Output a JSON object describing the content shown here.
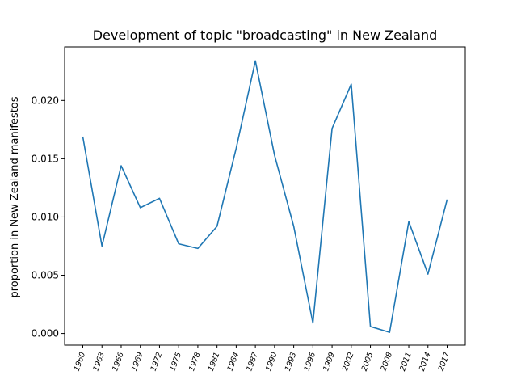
{
  "chart_data": {
    "type": "line",
    "title": "Development of topic \"broadcasting\" in New Zealand",
    "xlabel": "",
    "ylabel": "proportion in New Zealand manifestos",
    "categories": [
      "1960",
      "1963",
      "1966",
      "1969",
      "1972",
      "1975",
      "1978",
      "1981",
      "1984",
      "1987",
      "1990",
      "1993",
      "1996",
      "1999",
      "2002",
      "2005",
      "2008",
      "2011",
      "2014",
      "2017"
    ],
    "series": [
      {
        "values": [
          0.0169,
          0.0075,
          0.0144,
          0.0108,
          0.0116,
          0.0077,
          0.0073,
          0.0092,
          0.0159,
          0.0234,
          0.0153,
          0.0092,
          0.0009,
          0.0176,
          0.0214,
          0.0006,
          0.0001,
          0.0096,
          0.0051,
          0.0115
        ],
        "color": "#1f77b4"
      }
    ],
    "yticks": [
      "0.000",
      "0.005",
      "0.010",
      "0.015",
      "0.020"
    ],
    "ylim": [
      -0.001,
      0.0246
    ],
    "grid": false
  }
}
